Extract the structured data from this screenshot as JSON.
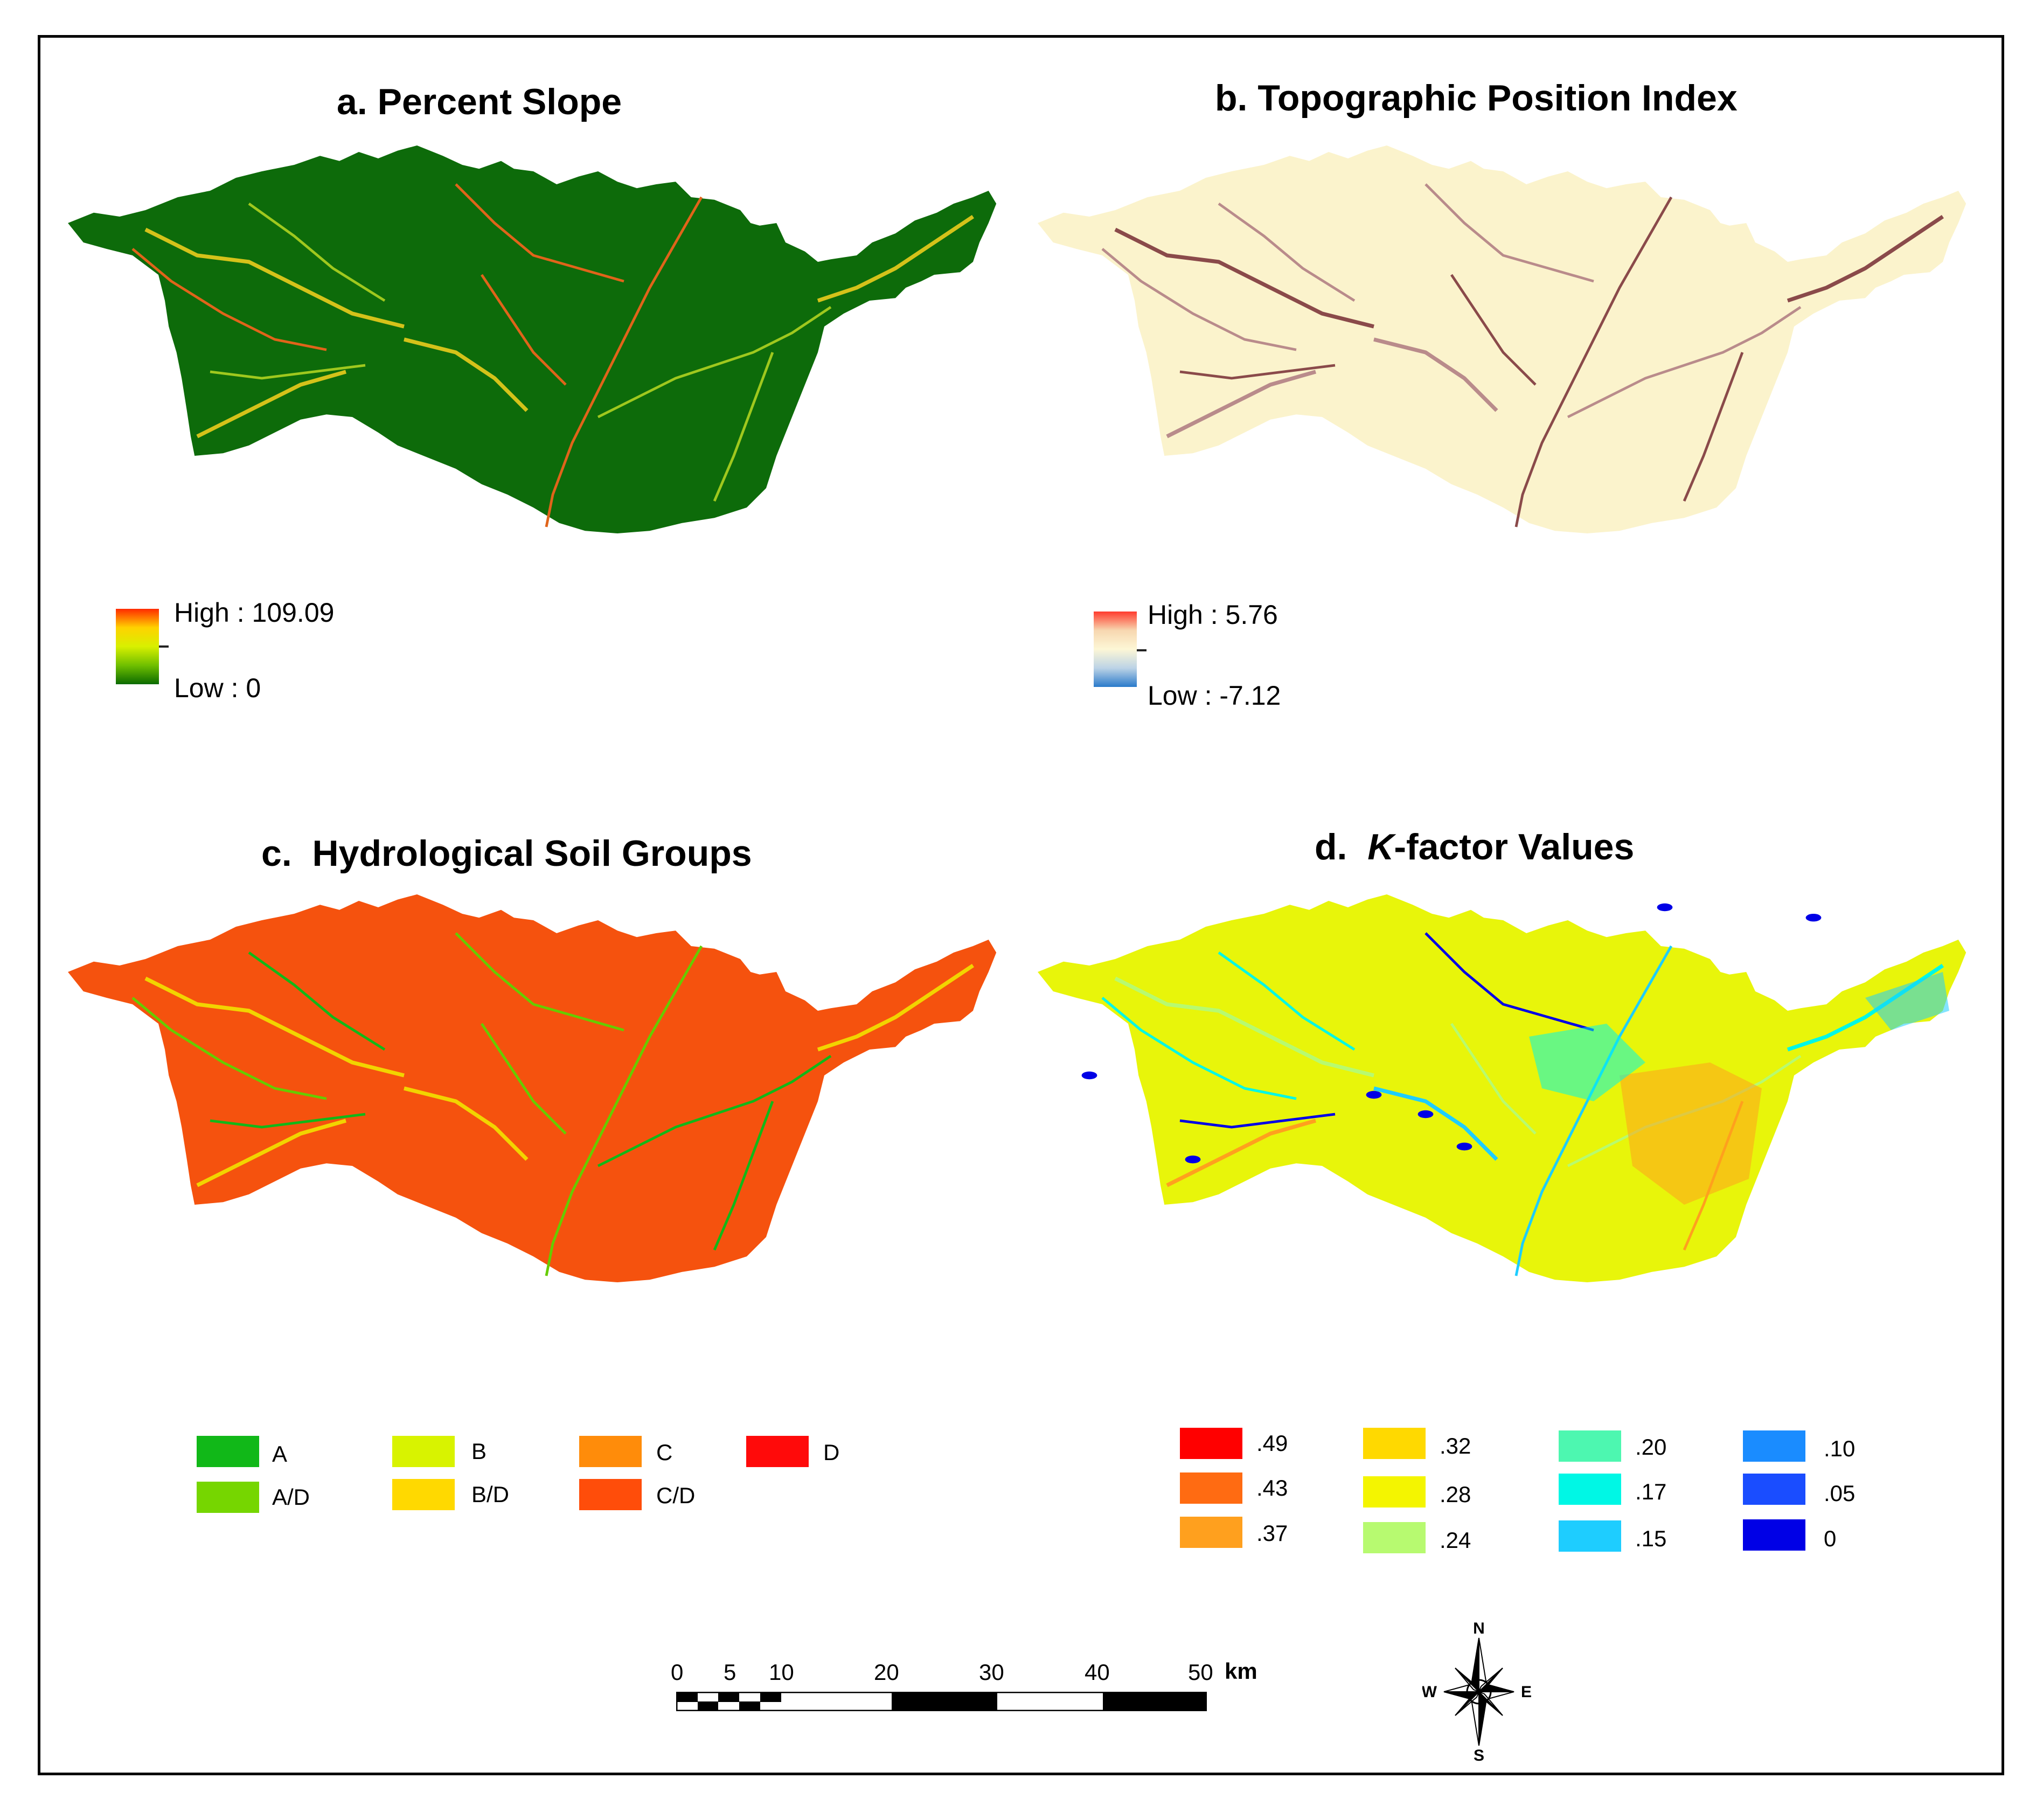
{
  "panels": {
    "a": {
      "title": "a.  Percent Slope",
      "legend_high": "High : 109.09",
      "legend_low": "Low : 0",
      "ramp_colors": [
        "#ff2a00",
        "#ffd200",
        "#d8f000",
        "#6fbf00",
        "#0b6a00"
      ]
    },
    "b": {
      "title": "b.  Topographic Position Index",
      "legend_high": "High : 5.76",
      "legend_low": "Low : -7.12",
      "ramp_colors": [
        "#ff3b2e",
        "#f7d7b0",
        "#fdf7d6",
        "#bcd3e6",
        "#2a7acb"
      ]
    },
    "c": {
      "title_prefix": "c.",
      "title_text": "Hydrological Soil Groups",
      "legend": [
        {
          "label": "A",
          "color": "#11b818"
        },
        {
          "label": "B",
          "color": "#d8f300"
        },
        {
          "label": "C",
          "color": "#ff8c0a"
        },
        {
          "label": "D",
          "color": "#ff0a0a"
        },
        {
          "label": "A/D",
          "color": "#76d600"
        },
        {
          "label": "B/D",
          "color": "#ffd900"
        },
        {
          "label": "C/D",
          "color": "#ff4d0a"
        }
      ]
    },
    "d": {
      "title_prefix": "d.",
      "title_italic": "K",
      "title_rest": "-factor Values",
      "legend": [
        {
          "label": ".49",
          "color": "#ff0000"
        },
        {
          "label": ".43",
          "color": "#ff6b12"
        },
        {
          "label": ".37",
          "color": "#ffa01e"
        },
        {
          "label": ".32",
          "color": "#ffd900"
        },
        {
          "label": ".28",
          "color": "#f4f500"
        },
        {
          "label": ".24",
          "color": "#b7fa70"
        },
        {
          "label": ".20",
          "color": "#4df7b0"
        },
        {
          "label": ".17",
          "color": "#00f7e5"
        },
        {
          "label": ".15",
          "color": "#1ecdff"
        },
        {
          "label": ".10",
          "color": "#1a8cff"
        },
        {
          "label": ".05",
          "color": "#1a4dff"
        },
        {
          "label": "0",
          "color": "#0000e6"
        }
      ]
    }
  },
  "scale_bar": {
    "ticks": [
      "0",
      "5",
      "10",
      "20",
      "30",
      "40",
      "50"
    ],
    "unit": "km"
  },
  "north_arrow": {
    "n": "N",
    "s": "S",
    "e": "E",
    "w": "W"
  },
  "map_colors": {
    "slope": {
      "base": "#0d6b0a",
      "mid": "#2f8f12",
      "streams": [
        "#d4c21a",
        "#e0641a",
        "#9fc81e"
      ]
    },
    "tpi": {
      "base": "#fbf3cc",
      "streams": [
        "#8a4a4a",
        "#b98b8b"
      ]
    },
    "hsg": {
      "base": "#f5520e",
      "streams": [
        "#f2d400",
        "#66cc00",
        "#11b818"
      ]
    },
    "kfactor": {
      "base": "#e8f50a",
      "accents": [
        "#b7fa70",
        "#00f7e5",
        "#0000e6",
        "#ffa01e",
        "#1ecdff"
      ]
    }
  }
}
